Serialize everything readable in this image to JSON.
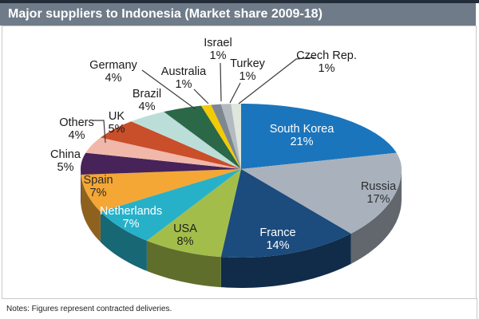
{
  "title": "Major suppliers to Indonesia (Market share 2009-18)",
  "notes": "Notes: Figures represent contracted deliveries.",
  "colors": {
    "header_bg": "#6F7B89",
    "header_accent": "#232C39",
    "frame_border": "#C9C9C9",
    "leader_line": "#3A3A3A"
  },
  "chart_data": {
    "type": "pie",
    "style": "3d",
    "title": "Major suppliers to Indonesia (Market share 2009-18)",
    "unit": "%",
    "start_angle_deg": 0,
    "direction": "clockwise",
    "legend": "none",
    "labels_show": "name-and-percent",
    "slices": [
      {
        "label": "South Korea",
        "value": 21,
        "color": "#1B75BC",
        "text_color": "#FFFFFF",
        "label_inside": true
      },
      {
        "label": "Russia",
        "value": 17,
        "color": "#A9B2BC",
        "text_color": "#2E2E2E",
        "label_inside": true
      },
      {
        "label": "France",
        "value": 14,
        "color": "#1C4B7D",
        "text_color": "#FFFFFF",
        "label_inside": true
      },
      {
        "label": "USA",
        "value": 8,
        "color": "#A3BD4A",
        "text_color": "#1E1E1E",
        "label_inside": true
      },
      {
        "label": "Netherlands",
        "value": 7,
        "color": "#27B1C9",
        "text_color": "#FFFFFF",
        "label_inside": true
      },
      {
        "label": "Spain",
        "value": 7,
        "color": "#F4A735",
        "text_color": "#2B2B2B",
        "label_inside": true
      },
      {
        "label": "China",
        "value": 5,
        "color": "#47235A",
        "text_color": "#1A1A1A",
        "label_inside": false
      },
      {
        "label": "Others",
        "value": 4,
        "color": "#F1B7A9",
        "text_color": "#1A1A1A",
        "label_inside": false
      },
      {
        "label": "UK",
        "value": 5,
        "color": "#C94E2A",
        "text_color": "#1A1A1A",
        "label_inside": false
      },
      {
        "label": "Brazil",
        "value": 4,
        "color": "#BCDED9",
        "text_color": "#1A1A1A",
        "label_inside": false
      },
      {
        "label": "Germany",
        "value": 4,
        "color": "#2B6847",
        "text_color": "#1A1A1A",
        "label_inside": false
      },
      {
        "label": "Australia",
        "value": 1,
        "color": "#F2CB05",
        "text_color": "#1A1A1A",
        "label_inside": false
      },
      {
        "label": "Israel",
        "value": 1,
        "color": "#7E878F",
        "text_color": "#1A1A1A",
        "label_inside": false
      },
      {
        "label": "Turkey",
        "value": 1,
        "color": "#B3BAC0",
        "text_color": "#1A1A1A",
        "label_inside": false
      },
      {
        "label": "Czech Rep.",
        "value": 1,
        "color": "#DFE7DC",
        "text_color": "#1A1A1A",
        "label_inside": false
      }
    ]
  }
}
